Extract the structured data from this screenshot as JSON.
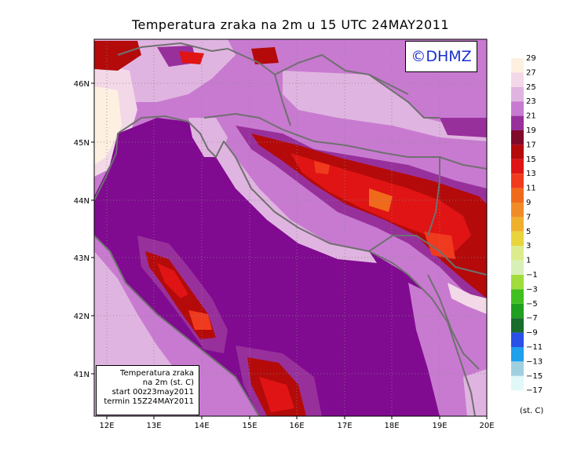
{
  "title": "Temperatura zraka na 2m u 15 UTC 24MAY2011",
  "copyright": "©DHMZ",
  "info": {
    "line1": "Temperatura zraka",
    "line2": "na 2m (st. C)",
    "line3": "start 00z23may2011",
    "line4": "termin 15Z24MAY2011"
  },
  "axes": {
    "lon_ticks": [
      "12E",
      "13E",
      "14E",
      "15E",
      "16E",
      "17E",
      "18E",
      "19E",
      "20E"
    ],
    "lat_ticks": [
      "46N",
      "45N",
      "44N",
      "43N",
      "42N",
      "41N"
    ]
  },
  "legend": {
    "unit": "(st. C)",
    "levels": [
      {
        "label": "29",
        "color": "#fdf0e0"
      },
      {
        "label": "27",
        "color": "#f3d8e8"
      },
      {
        "label": "25",
        "color": "#e0b4e0"
      },
      {
        "label": "23",
        "color": "#c87ad0"
      },
      {
        "label": "21",
        "color": "#98309c"
      },
      {
        "label": "19",
        "color": "#800a2a"
      },
      {
        "label": "17",
        "color": "#b40a0a"
      },
      {
        "label": "15",
        "color": "#e01414"
      },
      {
        "label": "13",
        "color": "#f03a1e"
      },
      {
        "label": "11",
        "color": "#f06a1c"
      },
      {
        "label": "9",
        "color": "#f08c28"
      },
      {
        "label": "7",
        "color": "#f0b02e"
      },
      {
        "label": "5",
        "color": "#e8d43c"
      },
      {
        "label": "3",
        "color": "#dcec8c"
      },
      {
        "label": "1",
        "color": "#d8f0b8"
      },
      {
        "label": "−1",
        "color": "#a0dc3c"
      },
      {
        "label": "−3",
        "color": "#40c020"
      },
      {
        "label": "−5",
        "color": "#20a020"
      },
      {
        "label": "−7",
        "color": "#186c2c"
      },
      {
        "label": "−9",
        "color": "#2a50e8"
      },
      {
        "label": "−11",
        "color": "#1ea0ec"
      },
      {
        "label": "−13",
        "color": "#a0d0e0"
      },
      {
        "label": "−15",
        "color": "#e0f8f8"
      },
      {
        "label": "−17",
        "color": ""
      }
    ]
  },
  "colors": {
    "sea": "#800a90",
    "land_base": "#c87ad0",
    "coastline": "#707070"
  }
}
